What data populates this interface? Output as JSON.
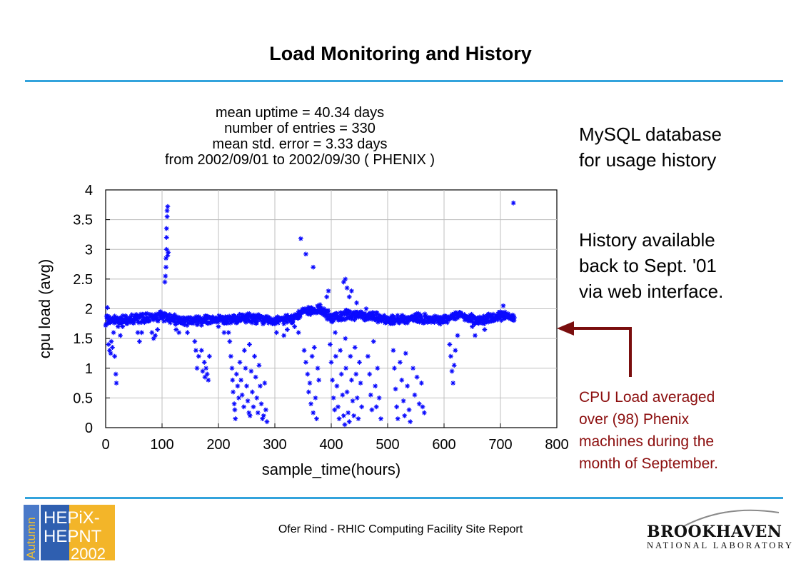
{
  "slide": {
    "title": "Load Monitoring and History",
    "notes": [
      "MySQL database",
      "for usage history"
    ],
    "notes2": [
      "History available",
      "back to Sept. '01",
      "via web interface."
    ],
    "annotation": [
      "CPU Load averaged",
      "over (98) Phenix",
      "machines during the",
      "month of September."
    ],
    "footer": "Ofer Rind - RHIC Computing Facility Site Report",
    "logo_left": {
      "side_text": "Autumn",
      "lines": [
        "HEPiX-",
        "HEPNT",
        "2002"
      ]
    },
    "logo_right": {
      "name": "BROOKHAVEN",
      "sub": "NATIONAL LABORATORY"
    },
    "colors": {
      "rule": "#33a3dc",
      "annotation": "#8b0d0d",
      "series": "#0a0aff"
    }
  },
  "chart_data": {
    "type": "scatter",
    "title_lines": [
      "mean uptime = 40.34 days",
      "number of entries = 330",
      "mean std. error =  3.33 days",
      "from 2002/09/01 to 2002/09/30 ( PHENIX )"
    ],
    "xlabel": "sample_time(hours)",
    "ylabel": "cpu load (avg)",
    "xlim": [
      0,
      800
    ],
    "ylim": [
      0,
      4
    ],
    "xticks": [
      "0",
      "100",
      "200",
      "300",
      "400",
      "500",
      "600",
      "700",
      "800"
    ],
    "yticks": [
      "0",
      "0.5",
      "1",
      "1.5",
      "2",
      "2.5",
      "3",
      "3.5",
      "4"
    ],
    "marker": "asterisk",
    "baseline_segments": [
      [
        0,
        1.8
      ],
      [
        40,
        1.82
      ],
      [
        80,
        1.85
      ],
      [
        100,
        1.88
      ],
      [
        130,
        1.8
      ],
      [
        180,
        1.8
      ],
      [
        220,
        1.82
      ],
      [
        250,
        1.85
      ],
      [
        300,
        1.8
      ],
      [
        330,
        1.82
      ],
      [
        350,
        1.95
      ],
      [
        380,
        2.0
      ],
      [
        400,
        1.85
      ],
      [
        430,
        1.9
      ],
      [
        470,
        1.88
      ],
      [
        500,
        1.8
      ],
      [
        550,
        1.85
      ],
      [
        600,
        1.8
      ],
      [
        620,
        1.9
      ],
      [
        660,
        1.8
      ],
      [
        700,
        1.88
      ],
      [
        725,
        1.85
      ]
    ],
    "points": [
      [
        3,
        2.02
      ],
      [
        5,
        1.4
      ],
      [
        7,
        1.3
      ],
      [
        9,
        1.25
      ],
      [
        10,
        1.45
      ],
      [
        12,
        1.35
      ],
      [
        14,
        1.6
      ],
      [
        16,
        1.2
      ],
      [
        18,
        0.9
      ],
      [
        19,
        0.75
      ],
      [
        22,
        1.7
      ],
      [
        26,
        1.55
      ],
      [
        30,
        1.7
      ],
      [
        57,
        1.6
      ],
      [
        60,
        1.45
      ],
      [
        64,
        1.6
      ],
      [
        82,
        1.6
      ],
      [
        85,
        1.5
      ],
      [
        88,
        1.55
      ],
      [
        92,
        1.65
      ],
      [
        105,
        2.45
      ],
      [
        106,
        2.55
      ],
      [
        107,
        2.7
      ],
      [
        107,
        2.85
      ],
      [
        108,
        3.0
      ],
      [
        108,
        3.2
      ],
      [
        108,
        3.35
      ],
      [
        109,
        3.55
      ],
      [
        109,
        3.65
      ],
      [
        110,
        3.72
      ],
      [
        110,
        2.9
      ],
      [
        111,
        2.95
      ],
      [
        125,
        1.65
      ],
      [
        130,
        1.6
      ],
      [
        145,
        1.6
      ],
      [
        158,
        1.45
      ],
      [
        160,
        1.3
      ],
      [
        162,
        1.0
      ],
      [
        165,
        1.2
      ],
      [
        170,
        1.3
      ],
      [
        172,
        0.95
      ],
      [
        175,
        1.1
      ],
      [
        176,
        0.85
      ],
      [
        178,
        1.0
      ],
      [
        180,
        0.9
      ],
      [
        182,
        0.8
      ],
      [
        184,
        1.2
      ],
      [
        200,
        1.7
      ],
      [
        210,
        1.6
      ],
      [
        218,
        1.6
      ],
      [
        220,
        1.45
      ],
      [
        222,
        1.2
      ],
      [
        224,
        1.0
      ],
      [
        225,
        0.8
      ],
      [
        226,
        0.6
      ],
      [
        228,
        0.4
      ],
      [
        229,
        0.3
      ],
      [
        230,
        0.15
      ],
      [
        232,
        0.9
      ],
      [
        234,
        0.7
      ],
      [
        236,
        0.5
      ],
      [
        238,
        1.1
      ],
      [
        240,
        0.8
      ],
      [
        242,
        0.55
      ],
      [
        245,
        0.35
      ],
      [
        246,
        1.3
      ],
      [
        248,
        1.0
      ],
      [
        250,
        0.7
      ],
      [
        252,
        0.45
      ],
      [
        254,
        0.25
      ],
      [
        255,
        1.4
      ],
      [
        256,
        0.2
      ],
      [
        258,
        0.95
      ],
      [
        260,
        0.6
      ],
      [
        262,
        0.35
      ],
      [
        264,
        1.2
      ],
      [
        266,
        0.85
      ],
      [
        268,
        0.5
      ],
      [
        270,
        0.25
      ],
      [
        272,
        1.05
      ],
      [
        274,
        0.7
      ],
      [
        276,
        0.4
      ],
      [
        278,
        0.15
      ],
      [
        280,
        0.2
      ],
      [
        282,
        0.75
      ],
      [
        284,
        0.3
      ],
      [
        286,
        0.1
      ],
      [
        303,
        1.6
      ],
      [
        316,
        1.55
      ],
      [
        322,
        1.65
      ],
      [
        335,
        1.7
      ],
      [
        342,
        1.6
      ],
      [
        346,
        3.18
      ],
      [
        355,
        2.92
      ],
      [
        368,
        2.7
      ],
      [
        352,
        1.3
      ],
      [
        355,
        1.1
      ],
      [
        358,
        0.9
      ],
      [
        360,
        0.6
      ],
      [
        362,
        0.75
      ],
      [
        364,
        0.4
      ],
      [
        366,
        1.2
      ],
      [
        368,
        0.25
      ],
      [
        370,
        1.35
      ],
      [
        372,
        0.5
      ],
      [
        374,
        0.15
      ],
      [
        376,
        1.0
      ],
      [
        378,
        0.8
      ],
      [
        392,
        2.2
      ],
      [
        395,
        2.3
      ],
      [
        398,
        1.4
      ],
      [
        400,
        1.1
      ],
      [
        402,
        0.8
      ],
      [
        404,
        0.5
      ],
      [
        406,
        0.3
      ],
      [
        407,
        1.6
      ],
      [
        408,
        1.2
      ],
      [
        410,
        0.7
      ],
      [
        412,
        0.35
      ],
      [
        414,
        0.15
      ],
      [
        416,
        1.3
      ],
      [
        418,
        0.9
      ],
      [
        420,
        0.55
      ],
      [
        422,
        0.2
      ],
      [
        424,
        0.05
      ],
      [
        425,
        1.5
      ],
      [
        426,
        1.0
      ],
      [
        428,
        0.6
      ],
      [
        430,
        0.25
      ],
      [
        432,
        0.1
      ],
      [
        434,
        1.2
      ],
      [
        436,
        0.8
      ],
      [
        438,
        0.45
      ],
      [
        440,
        0.2
      ],
      [
        442,
        1.35
      ],
      [
        444,
        0.9
      ],
      [
        446,
        0.5
      ],
      [
        448,
        0.15
      ],
      [
        450,
        1.1
      ],
      [
        452,
        0.75
      ],
      [
        454,
        0.35
      ],
      [
        422,
        2.45
      ],
      [
        425,
        2.5
      ],
      [
        428,
        2.35
      ],
      [
        432,
        2.2
      ],
      [
        436,
        2.3
      ],
      [
        445,
        2.1
      ],
      [
        462,
        2.0
      ],
      [
        465,
        1.2
      ],
      [
        468,
        0.9
      ],
      [
        470,
        0.55
      ],
      [
        472,
        0.3
      ],
      [
        475,
        1.45
      ],
      [
        478,
        0.7
      ],
      [
        480,
        0.35
      ],
      [
        482,
        1.0
      ],
      [
        485,
        0.5
      ],
      [
        488,
        0.15
      ],
      [
        510,
        1.3
      ],
      [
        512,
        1.0
      ],
      [
        514,
        0.65
      ],
      [
        516,
        0.35
      ],
      [
        518,
        0.15
      ],
      [
        522,
        1.1
      ],
      [
        525,
        0.8
      ],
      [
        528,
        0.45
      ],
      [
        530,
        0.2
      ],
      [
        532,
        1.25
      ],
      [
        535,
        0.7
      ],
      [
        538,
        0.3
      ],
      [
        540,
        0.1
      ],
      [
        545,
        1.0
      ],
      [
        548,
        0.55
      ],
      [
        552,
        0.85
      ],
      [
        556,
        0.4
      ],
      [
        560,
        0.75
      ],
      [
        562,
        0.35
      ],
      [
        565,
        0.25
      ],
      [
        610,
        1.4
      ],
      [
        612,
        1.2
      ],
      [
        614,
        0.95
      ],
      [
        616,
        0.75
      ],
      [
        618,
        1.05
      ],
      [
        620,
        1.3
      ],
      [
        624,
        1.55
      ],
      [
        650,
        1.7
      ],
      [
        655,
        1.55
      ],
      [
        672,
        1.65
      ],
      [
        700,
        1.95
      ],
      [
        705,
        2.05
      ],
      [
        710,
        1.9
      ],
      [
        723,
        3.78
      ]
    ]
  }
}
